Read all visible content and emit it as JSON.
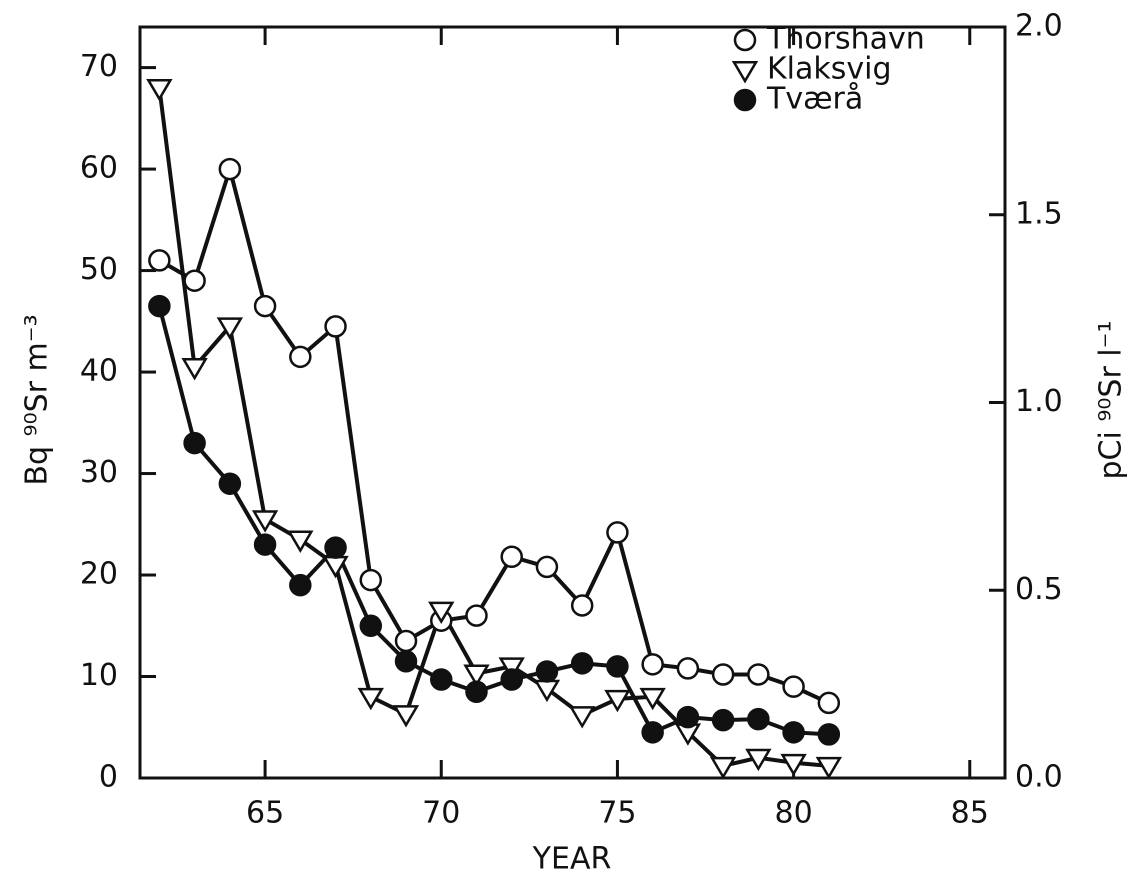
{
  "chart_data": {
    "type": "line",
    "x_label": "YEAR",
    "y_label": "Bq ⁹⁰Sr m⁻³",
    "y2_label": "pCi ⁹⁰Sr l⁻¹",
    "x": [
      62,
      63,
      64,
      65,
      66,
      67,
      68,
      69,
      70,
      71,
      72,
      73,
      74,
      75,
      76,
      77,
      78,
      79,
      80,
      81
    ],
    "series": [
      {
        "name": "Thorshavn",
        "color": "#111111",
        "marker": "circle-open",
        "values": [
          51,
          49,
          60,
          46.5,
          41.5,
          44.5,
          19.5,
          13.5,
          15.5,
          16,
          21.8,
          20.8,
          17,
          24.2,
          11.2,
          10.8,
          10.2,
          10.2,
          9,
          7.4
        ]
      },
      {
        "name": "Klaksvig",
        "color": "#111111",
        "marker": "triangle-down-open",
        "values": [
          68,
          40.5,
          44.5,
          25.5,
          23.5,
          21,
          8,
          6.3,
          16.5,
          10.3,
          11,
          8.8,
          6.2,
          7.8,
          8,
          4.5,
          1.2,
          2,
          1.5,
          1.2
        ]
      },
      {
        "name": "Tværå",
        "color": "#111111",
        "marker": "circle-filled",
        "values": [
          46.5,
          33,
          29,
          23,
          19,
          22.7,
          15,
          11.5,
          9.7,
          8.5,
          9.7,
          10.5,
          11.3,
          11,
          4.5,
          6,
          5.7,
          5.8,
          4.5,
          4.3
        ]
      }
    ],
    "xlim": [
      61.45,
      86
    ],
    "xticks": [
      65,
      70,
      75,
      80,
      85
    ],
    "ylim": [
      0,
      74
    ],
    "yticks": [
      0,
      10,
      20,
      30,
      40,
      50,
      60,
      70
    ],
    "y2lim": [
      0,
      2
    ],
    "y2ticks": [
      {
        "value": 0,
        "label": "0.0"
      },
      0.5,
      {
        "value": 1,
        "label": "1.0"
      },
      1.5,
      {
        "value": 2,
        "label": "2.0"
      }
    ],
    "legend": "upper right"
  }
}
